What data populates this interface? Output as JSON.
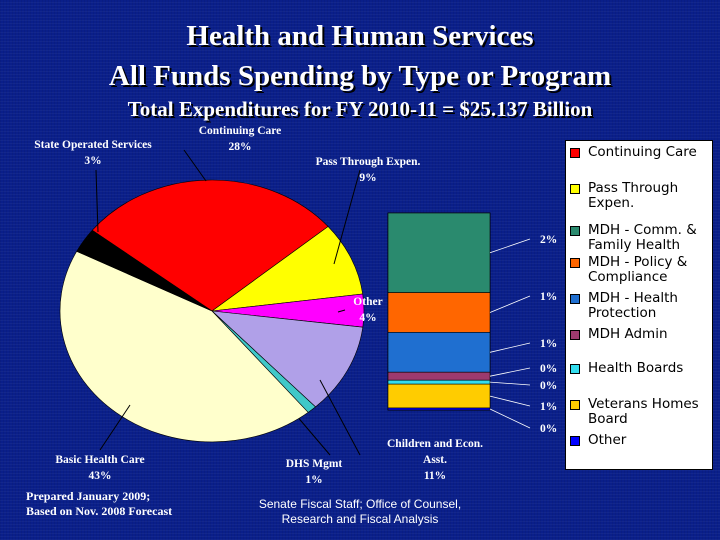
{
  "title": {
    "line1": "Health and Human Services",
    "line2": "All Funds Spending by Type or Program",
    "line3": "Total Expenditures for FY 2010-11 = $25.137 Billion"
  },
  "footnote": {
    "line1": "Prepared January 2009;",
    "line2": "Based on Nov. 2008 Forecast"
  },
  "credit": {
    "line1": "Senate Fiscal Staff; Office of Counsel,",
    "line2": "Research and Fiscal Analysis"
  },
  "chart_data": [
    {
      "type": "pie",
      "slices": [
        {
          "label": "Continuing Care",
          "pct_label": "28%",
          "value": 28,
          "color": "#ff0000"
        },
        {
          "label": "Pass Through Expen.",
          "pct_label": "9%",
          "value": 9,
          "color": "#ffff00"
        },
        {
          "label": "Other",
          "pct_label": "4%",
          "value": 4,
          "color": "#ff00ff"
        },
        {
          "label": "Children and Econ. Asst.",
          "pct_label": "11%",
          "value": 11,
          "color": "#b0a0e8"
        },
        {
          "label": "DHS Mgmt",
          "pct_label": "1%",
          "value": 1,
          "color": "#40c8c8"
        },
        {
          "label": "Basic Health Care",
          "pct_label": "43%",
          "value": 43,
          "color": "#ffffcc"
        },
        {
          "label": "State Operated Services",
          "pct_label": "3%",
          "value": 3,
          "color": "#000000"
        }
      ]
    },
    {
      "type": "bar",
      "stacked": true,
      "series": [
        {
          "name": "Continuing Care",
          "value": 0,
          "pct_label": "",
          "color": "#ff0000"
        },
        {
          "name": "Pass Through Expen.",
          "value": 0,
          "pct_label": "",
          "color": "#ffff00"
        },
        {
          "name": "MDH - Comm. & Family Health",
          "value": 2,
          "pct_label": "2%",
          "color": "#2a8a6e"
        },
        {
          "name": "MDH - Policy & Compliance",
          "value": 1,
          "pct_label": "1%",
          "color": "#ff6600"
        },
        {
          "name": "MDH - Health Protection",
          "value": 1,
          "pct_label": "1%",
          "color": "#1f6fd0"
        },
        {
          "name": "MDH Admin",
          "value": 0.2,
          "pct_label": "0%",
          "color": "#9c3a6e"
        },
        {
          "name": "Health Boards",
          "value": 0.1,
          "pct_label": "0%",
          "color": "#33ddee"
        },
        {
          "name": "Veterans Homes Board",
          "value": 0.6,
          "pct_label": "1%",
          "color": "#ffcc00"
        },
        {
          "name": "Other",
          "value": 0.05,
          "pct_label": "0%",
          "color": "#0000ff"
        }
      ],
      "legend_position": "right"
    }
  ]
}
